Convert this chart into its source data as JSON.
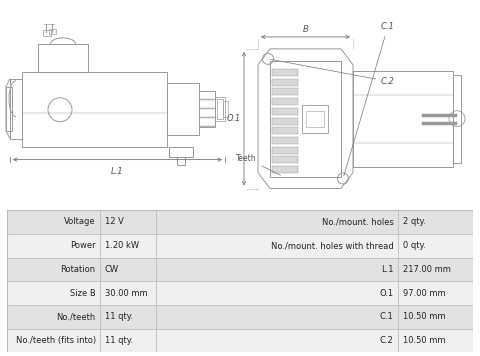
{
  "background_color": "#ffffff",
  "table_rows": [
    [
      "Voltage",
      "12 V",
      "No./mount. holes",
      "2 qty."
    ],
    [
      "Power",
      "1.20 kW",
      "No./mount. holes with thread",
      "0 qty."
    ],
    [
      "Rotation",
      "CW",
      "L.1",
      "217.00 mm"
    ],
    [
      "Size B",
      "30.00 mm",
      "O.1",
      "97.00 mm"
    ],
    [
      "No./teeth",
      "11 qty.",
      "C.1",
      "10.50 mm"
    ],
    [
      "No./teeth (fits into)",
      "11 qty.",
      "C.2",
      "10.50 mm"
    ]
  ],
  "col_bg_odd": "#e2e2e2",
  "col_bg_even": "#f0f0f0",
  "border_color": "#bbbbbb",
  "text_color": "#222222",
  "line_color": "#999999",
  "label_color": "#555555",
  "dim_line_color": "#777777"
}
